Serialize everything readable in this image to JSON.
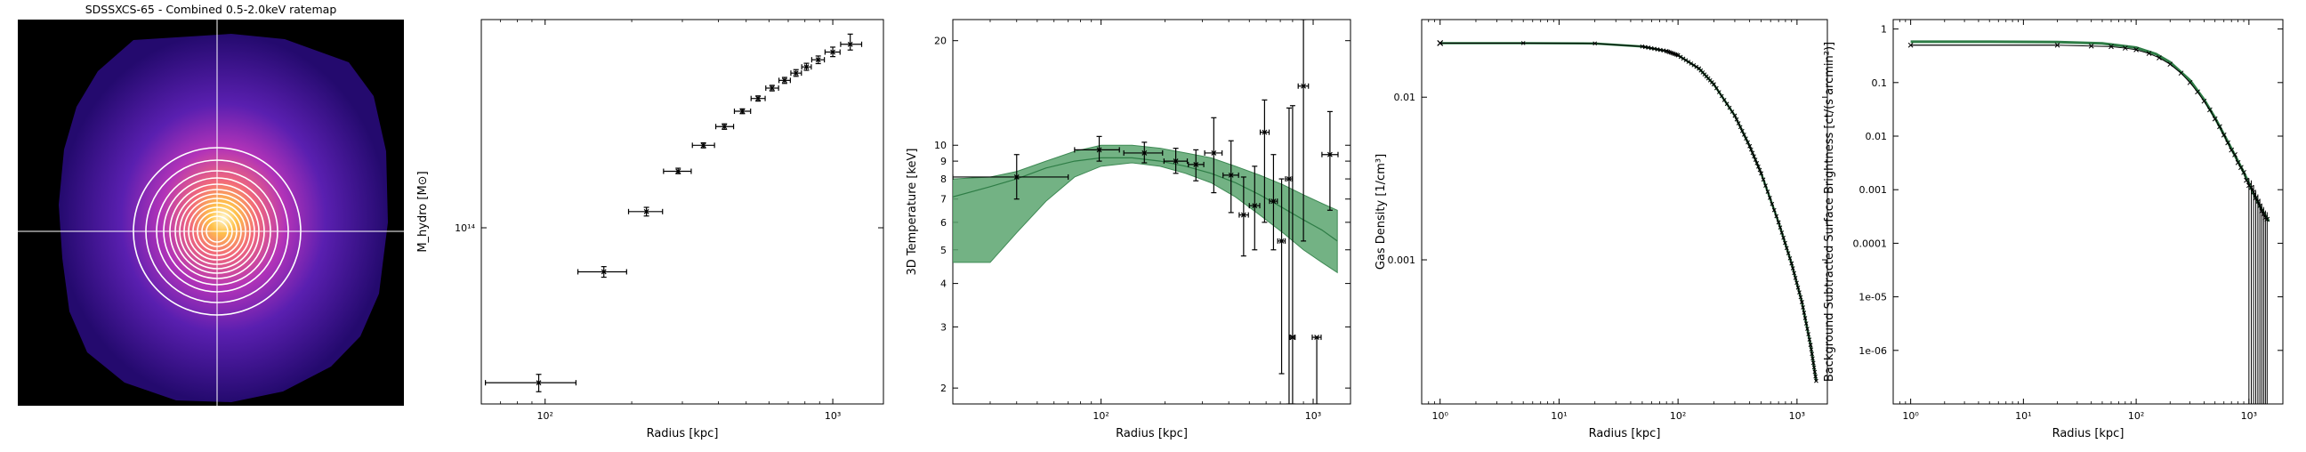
{
  "colors": {
    "band_fill": "#5aa56e",
    "band_edge": "#3f8a55",
    "model_line": "#2e7d46",
    "data": "#000000"
  },
  "image_panel": {
    "title": "SDSSXCS-65 - Combined 0.5-2.0keV ratemap"
  },
  "chart_data": [
    {
      "type": "scatter",
      "xlabel": "Radius [kpc]",
      "ylabel": "M_hydro [M⊙]",
      "xscale": "log",
      "yscale": "log",
      "xlim": [
        60,
        1500
      ],
      "ylim": [
        24000000000000.0,
        540000000000000.0
      ],
      "xticks": [
        100,
        1000
      ],
      "xtick_labels": [
        "10²",
        "10³"
      ],
      "yticks": [
        100000000000000.0
      ],
      "ytick_labels": [
        "10¹⁴"
      ],
      "points": [
        {
          "x": 95,
          "xlo": 62,
          "xhi": 128,
          "y": 28500000000000.0,
          "ylo": 26500000000000.0,
          "yhi": 30500000000000.0
        },
        {
          "x": 160,
          "xlo": 130,
          "xhi": 192,
          "y": 70000000000000.0,
          "ylo": 67000000000000.0,
          "yhi": 73000000000000.0
        },
        {
          "x": 225,
          "xlo": 195,
          "xhi": 256,
          "y": 114000000000000.0,
          "ylo": 110000000000000.0,
          "yhi": 118000000000000.0
        },
        {
          "x": 290,
          "xlo": 258,
          "xhi": 322,
          "y": 158000000000000.0,
          "ylo": 155000000000000.0,
          "yhi": 162000000000000.0
        },
        {
          "x": 355,
          "xlo": 325,
          "xhi": 388,
          "y": 195000000000000.0,
          "ylo": 191000000000000.0,
          "yhi": 199000000000000.0
        },
        {
          "x": 420,
          "xlo": 392,
          "xhi": 452,
          "y": 227000000000000.0,
          "ylo": 222000000000000.0,
          "yhi": 232000000000000.0
        },
        {
          "x": 485,
          "xlo": 455,
          "xhi": 518,
          "y": 257000000000000.0,
          "ylo": 252000000000000.0,
          "yhi": 262000000000000.0
        },
        {
          "x": 550,
          "xlo": 520,
          "xhi": 582,
          "y": 285000000000000.0,
          "ylo": 279000000000000.0,
          "yhi": 291000000000000.0
        },
        {
          "x": 615,
          "xlo": 585,
          "xhi": 648,
          "y": 310000000000000.0,
          "ylo": 303000000000000.0,
          "yhi": 317000000000000.0
        },
        {
          "x": 680,
          "xlo": 650,
          "xhi": 712,
          "y": 330000000000000.0,
          "ylo": 322000000000000.0,
          "yhi": 338000000000000.0
        },
        {
          "x": 745,
          "xlo": 715,
          "xhi": 778,
          "y": 350000000000000.0,
          "ylo": 341000000000000.0,
          "yhi": 360000000000000.0
        },
        {
          "x": 810,
          "xlo": 780,
          "xhi": 842,
          "y": 368000000000000.0,
          "ylo": 358000000000000.0,
          "yhi": 379000000000000.0
        },
        {
          "x": 890,
          "xlo": 845,
          "xhi": 935,
          "y": 390000000000000.0,
          "ylo": 378000000000000.0,
          "yhi": 402000000000000.0
        },
        {
          "x": 1000,
          "xlo": 940,
          "xhi": 1060,
          "y": 415000000000000.0,
          "ylo": 400000000000000.0,
          "yhi": 432000000000000.0
        },
        {
          "x": 1150,
          "xlo": 1065,
          "xhi": 1260,
          "y": 442000000000000.0,
          "ylo": 422000000000000.0,
          "yhi": 480000000000000.0
        }
      ]
    },
    {
      "type": "scatter",
      "xlabel": "Radius [kpc]",
      "ylabel": "3D Temperature [keV]",
      "xscale": "log",
      "yscale": "log",
      "xlim": [
        20,
        1500
      ],
      "ylim": [
        1.8,
        23
      ],
      "xticks": [
        100,
        1000
      ],
      "xtick_labels": [
        "10²",
        "10³"
      ],
      "yticks": [
        2,
        3,
        4,
        5,
        6,
        7,
        8,
        9,
        10,
        20
      ],
      "ytick_labels": [
        "2",
        "3",
        "4",
        "5",
        "6",
        "7",
        "8",
        "9",
        "10",
        "20"
      ],
      "model": {
        "x": [
          20,
          30,
          40,
          55,
          75,
          100,
          140,
          190,
          250,
          330,
          430,
          560,
          720,
          900,
          1100,
          1300
        ],
        "y": [
          7.1,
          7.6,
          8.0,
          8.6,
          9.0,
          9.2,
          9.2,
          9.0,
          8.7,
          8.3,
          7.8,
          7.2,
          6.6,
          6.1,
          5.7,
          5.3
        ],
        "y_lo": [
          4.6,
          4.6,
          5.6,
          6.9,
          8.1,
          8.7,
          8.9,
          8.7,
          8.3,
          7.8,
          7.1,
          6.3,
          5.6,
          5.0,
          4.6,
          4.3
        ],
        "y_hi": [
          8.0,
          8.1,
          8.4,
          9.0,
          9.6,
          10.0,
          10.0,
          9.8,
          9.5,
          9.2,
          8.7,
          8.2,
          7.7,
          7.2,
          6.8,
          6.5
        ]
      },
      "points": [
        {
          "x": 40,
          "xlo": 20,
          "xhi": 70,
          "y": 8.1,
          "ylo": 7.0,
          "yhi": 9.4
        },
        {
          "x": 98,
          "xlo": 75,
          "xhi": 122,
          "y": 9.7,
          "ylo": 9.0,
          "yhi": 10.6
        },
        {
          "x": 160,
          "xlo": 128,
          "xhi": 195,
          "y": 9.5,
          "ylo": 8.9,
          "yhi": 10.2
        },
        {
          "x": 225,
          "xlo": 198,
          "xhi": 255,
          "y": 9.0,
          "ylo": 8.3,
          "yhi": 9.8
        },
        {
          "x": 280,
          "xlo": 258,
          "xhi": 305,
          "y": 8.8,
          "ylo": 7.9,
          "yhi": 9.7
        },
        {
          "x": 340,
          "xlo": 308,
          "xhi": 372,
          "y": 9.5,
          "ylo": 7.3,
          "yhi": 12.0
        },
        {
          "x": 410,
          "xlo": 376,
          "xhi": 445,
          "y": 8.2,
          "ylo": 6.4,
          "yhi": 10.3
        },
        {
          "x": 470,
          "xlo": 448,
          "xhi": 495,
          "y": 6.3,
          "ylo": 4.8,
          "yhi": 8.1
        },
        {
          "x": 530,
          "xlo": 500,
          "xhi": 560,
          "y": 6.7,
          "ylo": 5.0,
          "yhi": 8.7
        },
        {
          "x": 590,
          "xlo": 563,
          "xhi": 620,
          "y": 10.9,
          "ylo": 6.0,
          "yhi": 13.5
        },
        {
          "x": 650,
          "xlo": 623,
          "xhi": 678,
          "y": 6.9,
          "ylo": 5.0,
          "yhi": 9.4
        },
        {
          "x": 710,
          "xlo": 681,
          "xhi": 738,
          "y": 5.3,
          "ylo": 2.2,
          "yhi": 8.0
        },
        {
          "x": 770,
          "xlo": 741,
          "xhi": 798,
          "y": 8.0,
          "ylo": 1.8,
          "yhi": 12.8
        },
        {
          "x": 800,
          "xlo": 778,
          "xhi": 822,
          "y": 2.8,
          "ylo": 1.8,
          "yhi": 13.0
        },
        {
          "x": 900,
          "xlo": 850,
          "xhi": 950,
          "y": 14.8,
          "ylo": 5.3,
          "yhi": 23.0
        },
        {
          "x": 1040,
          "xlo": 990,
          "xhi": 1090,
          "y": 2.8,
          "ylo": 1.8,
          "yhi": 2.8
        },
        {
          "x": 1200,
          "xlo": 1100,
          "xhi": 1310,
          "y": 9.4,
          "ylo": 6.5,
          "yhi": 12.5
        }
      ]
    },
    {
      "type": "line",
      "xlabel": "Radius [kpc]",
      "ylabel": "Gas Density [1/cm³]",
      "xscale": "log",
      "yscale": "log",
      "xlim": [
        0.7,
        1800
      ],
      "ylim": [
        0.00013,
        0.03
      ],
      "xticks": [
        1,
        10,
        100,
        1000
      ],
      "xtick_labels": [
        "10⁰",
        "10¹",
        "10²",
        "10³"
      ],
      "yticks": [
        0.001,
        0.01
      ],
      "ytick_labels": [
        "0.001",
        "0.01"
      ],
      "x": [
        1,
        5,
        20,
        50,
        80,
        100,
        150,
        200,
        300,
        400,
        500,
        700,
        900,
        1100,
        1300,
        1450
      ],
      "y": [
        0.0215,
        0.0215,
        0.0214,
        0.0205,
        0.0192,
        0.0181,
        0.015,
        0.012,
        0.0077,
        0.005,
        0.0034,
        0.0017,
        0.00095,
        0.00055,
        0.0003,
        0.00018
      ]
    },
    {
      "type": "line",
      "xlabel": "Radius [kpc]",
      "ylabel": "Background Subtracted Surface Brightness [ct/(s arcmin²)]",
      "xscale": "log",
      "yscale": "log",
      "xlim": [
        0.7,
        2000
      ],
      "ylim": [
        1e-07,
        1.5
      ],
      "xticks": [
        1,
        10,
        100,
        1000
      ],
      "xtick_labels": [
        "10⁰",
        "10¹",
        "10²",
        "10³"
      ],
      "yticks": [
        1e-06,
        1e-05,
        0.0001,
        0.001,
        0.01,
        0.1,
        1
      ],
      "ytick_labels": [
        "1e-06",
        "1e-05",
        "0.0001",
        "0.001",
        "0.01",
        "0.1",
        "1"
      ],
      "model_x": [
        1,
        5,
        20,
        50,
        100,
        150,
        200,
        300,
        400,
        500,
        700,
        900,
        1100,
        1300,
        1500
      ],
      "model_y": [
        0.58,
        0.58,
        0.57,
        0.54,
        0.45,
        0.34,
        0.24,
        0.11,
        0.048,
        0.022,
        0.0058,
        0.0021,
        0.00085,
        0.00042,
        0.00026
      ],
      "data_x": [
        1,
        20,
        40,
        60,
        80,
        100,
        130,
        160,
        200,
        250,
        300,
        350,
        400,
        450,
        500,
        550,
        600,
        650,
        700,
        750,
        800,
        850,
        900,
        950,
        1000,
        1050,
        1100,
        1150,
        1200,
        1250,
        1300,
        1350,
        1400,
        1450
      ],
      "data_y": [
        0.5,
        0.5,
        0.48,
        0.47,
        0.44,
        0.41,
        0.35,
        0.29,
        0.22,
        0.15,
        0.1,
        0.067,
        0.045,
        0.031,
        0.021,
        0.015,
        0.0105,
        0.0075,
        0.0055,
        0.0045,
        0.0032,
        0.0026,
        0.0021,
        0.0015,
        0.0012,
        0.0011,
        0.0009,
        0.0007,
        0.0006,
        0.0005,
        0.0004,
        0.00035,
        0.0003,
        0.00028
      ]
    }
  ]
}
